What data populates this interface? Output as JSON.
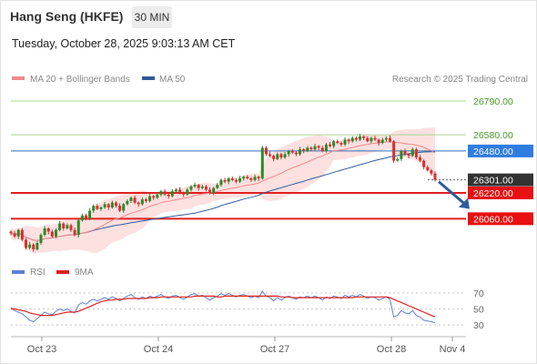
{
  "header": {
    "title": "Hang Seng (HKFE)",
    "timeframe": "30 MIN",
    "datetime": "Tuesday, October 28, 2025 9:03:13 AM CET"
  },
  "colors": {
    "ma20": "#f08a8a",
    "ma50": "#2f5b9a",
    "band_fill": "#fde0e0",
    "resistance": "#a9d88c",
    "resistance_label": "#4a9a2a",
    "pivot": "#2f6db8",
    "pivot_label_bg": "#2f7de1",
    "support": "#e02020",
    "support_label_bg": "#e81010",
    "last_label_bg": "#333333",
    "up_candle": "#2a8a2a",
    "down_candle": "#d63030",
    "rsi": "#5b80d8",
    "rsi_ma": "#e02020",
    "arrow": "#2f5b9a"
  },
  "chart_data": [
    {
      "type": "candlestick",
      "legend": [
        {
          "name": "MA 20 + Bollinger Bands",
          "color": "#f08a8a"
        },
        {
          "name": "MA 50",
          "color": "#2f5b9a"
        }
      ],
      "credit": "Research © 2025 Trading Central",
      "ylim": [
        25780,
        26880
      ],
      "x_ticks": [
        "Oct 23",
        "Oct 24",
        "Oct 27",
        "Oct 28",
        "Nov 4"
      ],
      "levels": [
        {
          "label": "26790.00",
          "value": 26790,
          "kind": "resistance"
        },
        {
          "label": "26580.00",
          "value": 26580,
          "kind": "resistance"
        },
        {
          "label": "26480.00",
          "value": 26480,
          "kind": "pivot"
        },
        {
          "label": "26301.00",
          "value": 26301,
          "kind": "last"
        },
        {
          "label": "26220.00",
          "value": 26220,
          "kind": "support"
        },
        {
          "label": "26060.00",
          "value": 26060,
          "kind": "support"
        }
      ],
      "close": [
        25970,
        25950,
        25990,
        25930,
        25880,
        25900,
        25870,
        25910,
        25960,
        26000,
        25980,
        25950,
        25990,
        26030,
        26000,
        26020,
        25990,
        25960,
        26050,
        26080,
        26060,
        26110,
        26140,
        26120,
        26130,
        26150,
        26130,
        26160,
        26140,
        26110,
        26150,
        26170,
        26190,
        26160,
        26150,
        26180,
        26170,
        26200,
        26190,
        26210,
        26230,
        26210,
        26200,
        26230,
        26240,
        26220,
        26210,
        26240,
        26260,
        26270,
        26250,
        26260,
        26240,
        26220,
        26250,
        26270,
        26300,
        26290,
        26310,
        26300,
        26290,
        26310,
        26320,
        26310,
        26300,
        26320,
        26310,
        26500,
        26460,
        26450,
        26430,
        26460,
        26440,
        26460,
        26480,
        26470,
        26460,
        26490,
        26480,
        26500,
        26490,
        26510,
        26500,
        26480,
        26520,
        26510,
        26540,
        26530,
        26520,
        26550,
        26540,
        26560,
        26550,
        26570,
        26560,
        26540,
        26560,
        26550,
        26530,
        26550,
        26560,
        26540,
        26420,
        26430,
        26480,
        26460,
        26450,
        26490,
        26440,
        26420,
        26380,
        26360,
        26340,
        26301
      ]
    },
    {
      "type": "line",
      "legend": [
        {
          "name": "RSI",
          "color": "#5b80d8"
        },
        {
          "name": "9MA",
          "color": "#e02020"
        }
      ],
      "ylim": [
        20,
        80
      ],
      "y_ticks": [
        70,
        50,
        30
      ],
      "rsi": [
        52,
        48,
        46,
        44,
        40,
        36,
        34,
        38,
        42,
        46,
        44,
        43,
        47,
        50,
        48,
        50,
        47,
        45,
        55,
        58,
        56,
        60,
        62,
        60,
        62,
        64,
        62,
        65,
        63,
        60,
        63,
        66,
        68,
        64,
        62,
        65,
        63,
        66,
        64,
        66,
        68,
        65,
        63,
        66,
        67,
        64,
        62,
        65,
        68,
        69,
        66,
        67,
        64,
        61,
        64,
        66,
        69,
        67,
        69,
        67,
        65,
        67,
        68,
        66,
        64,
        66,
        64,
        72,
        66,
        64,
        60,
        64,
        61,
        64,
        66,
        64,
        62,
        65,
        64,
        66,
        64,
        66,
        64,
        61,
        65,
        63,
        66,
        65,
        63,
        67,
        65,
        67,
        65,
        68,
        66,
        63,
        65,
        64,
        61,
        63,
        65,
        62,
        40,
        42,
        48,
        45,
        44,
        48,
        42,
        40,
        36,
        35,
        34,
        33
      ],
      "rsi_ma": [
        50,
        50,
        49,
        48,
        47,
        45,
        44,
        43,
        42,
        42,
        42,
        42,
        43,
        44,
        45,
        46,
        46,
        46,
        47,
        49,
        51,
        53,
        55,
        57,
        59,
        60,
        61,
        61,
        62,
        62,
        62,
        63,
        63,
        63,
        63,
        63,
        63,
        64,
        64,
        64,
        65,
        65,
        65,
        65,
        65,
        65,
        65,
        65,
        65,
        66,
        66,
        66,
        66,
        66,
        66,
        65,
        65,
        66,
        66,
        66,
        66,
        66,
        66,
        66,
        66,
        66,
        66,
        66,
        66,
        66,
        66,
        66,
        65,
        65,
        65,
        64,
        64,
        64,
        64,
        64,
        64,
        64,
        64,
        64,
        64,
        64,
        64,
        64,
        64,
        64,
        64,
        64,
        65,
        65,
        65,
        65,
        65,
        65,
        65,
        65,
        65,
        64,
        62,
        60,
        58,
        56,
        54,
        52,
        50,
        48,
        46,
        44,
        42,
        40
      ]
    }
  ]
}
